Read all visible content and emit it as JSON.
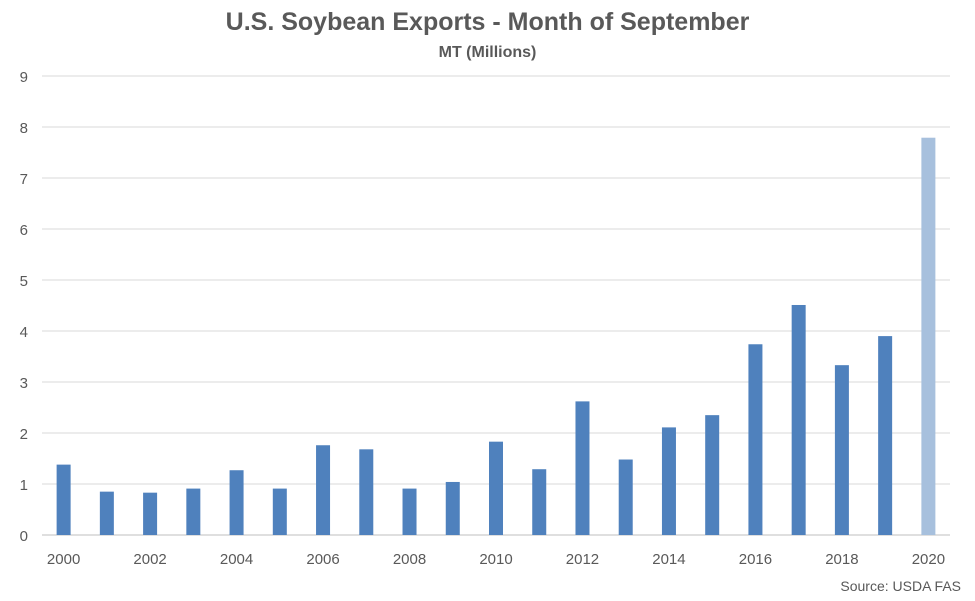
{
  "chart_data": {
    "type": "bar",
    "title": "U.S. Soybean Exports - Month of September",
    "subtitle": "MT (Millions)",
    "xlabel": "",
    "ylabel": "",
    "source": "Source: USDA FAS",
    "categories": [
      "2000",
      "2001",
      "2002",
      "2003",
      "2004",
      "2005",
      "2006",
      "2007",
      "2008",
      "2009",
      "2010",
      "2011",
      "2012",
      "2013",
      "2014",
      "2015",
      "2016",
      "2017",
      "2018",
      "2019",
      "2020"
    ],
    "x_tick_labels": [
      "2000",
      "2002",
      "2004",
      "2006",
      "2008",
      "2010",
      "2012",
      "2014",
      "2016",
      "2018",
      "2020"
    ],
    "values": [
      1.38,
      0.85,
      0.83,
      0.91,
      1.27,
      0.91,
      1.76,
      1.68,
      0.91,
      1.04,
      1.83,
      1.29,
      2.62,
      1.48,
      2.11,
      2.35,
      3.74,
      4.51,
      3.33,
      3.9,
      7.79
    ],
    "y_ticks": [
      0,
      1,
      2,
      3,
      4,
      5,
      6,
      7,
      8,
      9
    ],
    "ylim": [
      0,
      9
    ],
    "grid": true,
    "legend": "none",
    "colors": {
      "bar": "#4f81bd",
      "highlight_bar": "#a7c0dd",
      "gridline": "#d9d9d9",
      "text": "#595959"
    },
    "highlight_index": 20
  }
}
